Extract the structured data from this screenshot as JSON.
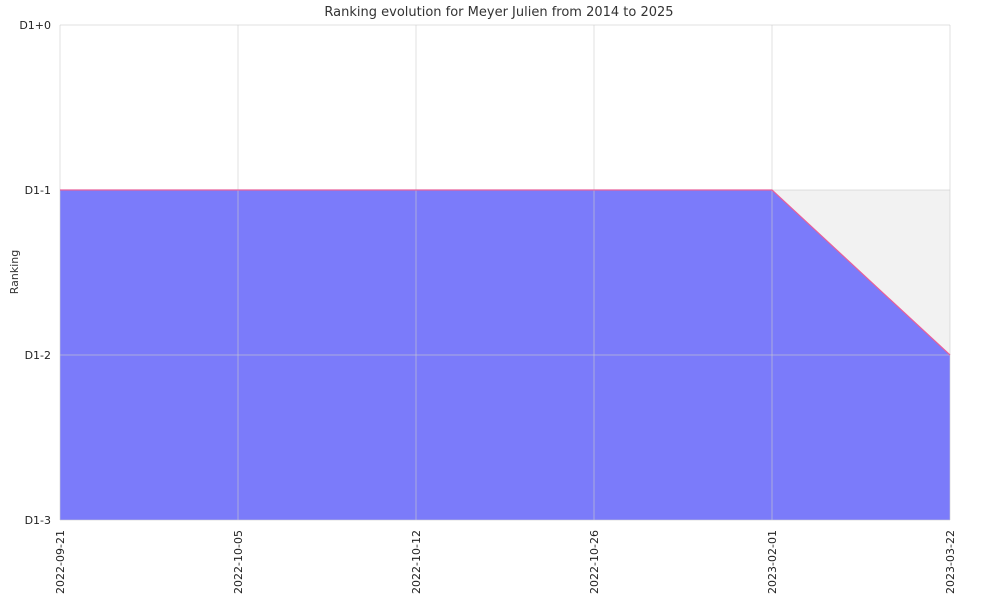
{
  "chart_data": {
    "type": "area",
    "title": "Ranking evolution for Meyer Julien from 2014 to 2025",
    "xlabel": "",
    "ylabel": "Ranking",
    "x": [
      "2022-09-21",
      "2022-10-05",
      "2022-10-12",
      "2022-10-26",
      "2023-02-01",
      "2023-03-22"
    ],
    "y_categories": [
      "D1-3",
      "D1-2",
      "D1-1",
      "D1+0"
    ],
    "series": [
      {
        "values": [
          "D1-1",
          "D1-1",
          "D1-1",
          "D1-1",
          "D1-1",
          "D1-2"
        ]
      }
    ],
    "ylim": [
      "D1-3",
      "D1+0"
    ],
    "grid": true,
    "colors": {
      "fill": "#7b7bfa",
      "line": "#e8609a",
      "band": "#f2f2f2",
      "grid": "#cccccc"
    }
  }
}
